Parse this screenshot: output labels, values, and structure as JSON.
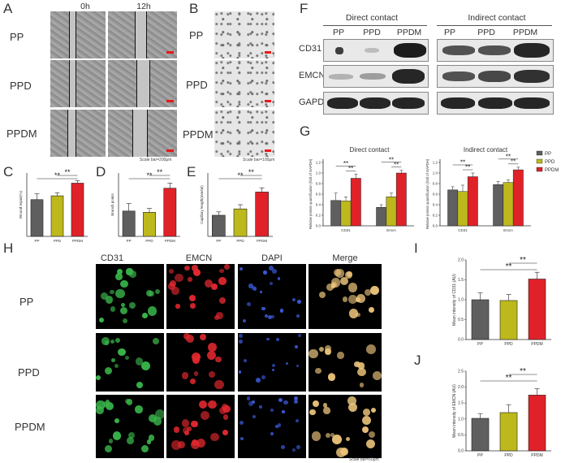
{
  "panels": [
    "A",
    "B",
    "C",
    "D",
    "E",
    "F",
    "G",
    "H",
    "I",
    "J"
  ],
  "A": {
    "col0": "0h",
    "col1": "12h",
    "rows": [
      "PP",
      "PPD",
      "PPDM"
    ],
    "scale": "Scale bar=200μm"
  },
  "B": {
    "rows": [
      "PP",
      "PPD",
      "PPDM"
    ],
    "scale": "Scale bar=100μm"
  },
  "F": {
    "direct": "Direct contact",
    "indirect": "Indirect contact",
    "groups": [
      "PP",
      "PPD",
      "PPDM"
    ],
    "rows": [
      "CD31",
      "EMCN",
      "GAPDH"
    ]
  },
  "H": {
    "cols": [
      "CD31",
      "EMCN",
      "DAPI",
      "Merge"
    ],
    "rows": [
      "PP",
      "PPD",
      "PPDM"
    ],
    "scale": "Scale bar=50μm",
    "colors": {
      "CD31": "#2e9a3a",
      "EMCN": "#d8232a",
      "DAPI": "#3a3aa8",
      "Merge": "#333333"
    }
  },
  "colors": {
    "PP": "#5f5f5f",
    "PPD": "#bdb81c",
    "PPDM": "#e02128"
  },
  "sig": "**",
  "chart_data": [
    {
      "id": "C",
      "type": "bar",
      "categories": [
        "PP",
        "PPD",
        "PPDM"
      ],
      "values": [
        58,
        64,
        84
      ],
      "errors": [
        9,
        5,
        4
      ],
      "ylabel": "Wound repair(%)",
      "ylim": [
        0,
        100
      ]
    },
    {
      "id": "D",
      "type": "bar",
      "categories": [
        "PP",
        "PPD",
        "PPDM"
      ],
      "values": [
        20,
        19,
        38
      ],
      "errors": [
        6,
        3,
        4
      ],
      "ylabel": "Branch points",
      "ylim": [
        0,
        50
      ]
    },
    {
      "id": "E",
      "type": "bar",
      "categories": [
        "PP",
        "PPD",
        "PPDM"
      ],
      "values": [
        5,
        6.5,
        10.5
      ],
      "errors": [
        0.8,
        1,
        1
      ],
      "ylabel": "Capillary length(mm/ml)",
      "ylim": [
        0,
        15
      ]
    },
    {
      "id": "G1",
      "type": "bar",
      "title": "Direct contact",
      "categories": [
        "CD31",
        "Emcn"
      ],
      "series": [
        {
          "name": "PP",
          "values": [
            0.48,
            0.35
          ]
        },
        {
          "name": "PPD",
          "values": [
            0.47,
            0.55
          ]
        },
        {
          "name": "PPDM",
          "values": [
            0.9,
            1.0
          ]
        }
      ],
      "errors": [
        [
          0.14,
          0.05
        ],
        [
          0.08,
          0.07
        ],
        [
          0.08,
          0.05
        ]
      ],
      "ylabel": "Relative protein quantification (fold of GAPDH)",
      "yticks": [
        0,
        0.2,
        0.4,
        0.6,
        0.8,
        1.0,
        1.2
      ],
      "ylim": [
        0,
        1.2
      ]
    },
    {
      "id": "G2",
      "type": "bar",
      "title": "Indirect contact",
      "categories": [
        "CD31",
        "Emcn"
      ],
      "series": [
        {
          "name": "PP",
          "values": [
            0.68,
            0.78
          ]
        },
        {
          "name": "PPD",
          "values": [
            0.65,
            0.82
          ]
        },
        {
          "name": "PPDM",
          "values": [
            0.93,
            1.06
          ]
        }
      ],
      "errors": [
        [
          0.06,
          0.06
        ],
        [
          0.12,
          0.05
        ],
        [
          0.07,
          0.05
        ]
      ],
      "ylabel": "Relative protein quantification (fold of GAPDH)",
      "yticks": [
        0,
        0.2,
        0.4,
        0.6,
        0.8,
        1.0,
        1.2
      ],
      "ylim": [
        0,
        1.2
      ],
      "legend": [
        "PP",
        "PPD",
        "PPDM"
      ]
    },
    {
      "id": "I",
      "type": "bar",
      "categories": [
        "PP",
        "PPD",
        "PPDM"
      ],
      "values": [
        1.0,
        0.98,
        1.52
      ],
      "errors": [
        0.17,
        0.15,
        0.17
      ],
      "ylabel": "Mean intensity of CD31 (AU)",
      "yticks": [
        0,
        0.5,
        1.0,
        1.5,
        2.0
      ],
      "ylim": [
        0,
        2.0
      ]
    },
    {
      "id": "J",
      "type": "bar",
      "categories": [
        "PP",
        "PPD",
        "PPDM"
      ],
      "values": [
        1.02,
        1.2,
        1.75
      ],
      "errors": [
        0.15,
        0.25,
        0.2
      ],
      "ylabel": "Mean intensity of EMCN (AU)",
      "yticks": [
        0,
        0.5,
        1.0,
        1.5,
        2.0,
        2.5
      ],
      "ylim": [
        0,
        2.5
      ]
    }
  ]
}
